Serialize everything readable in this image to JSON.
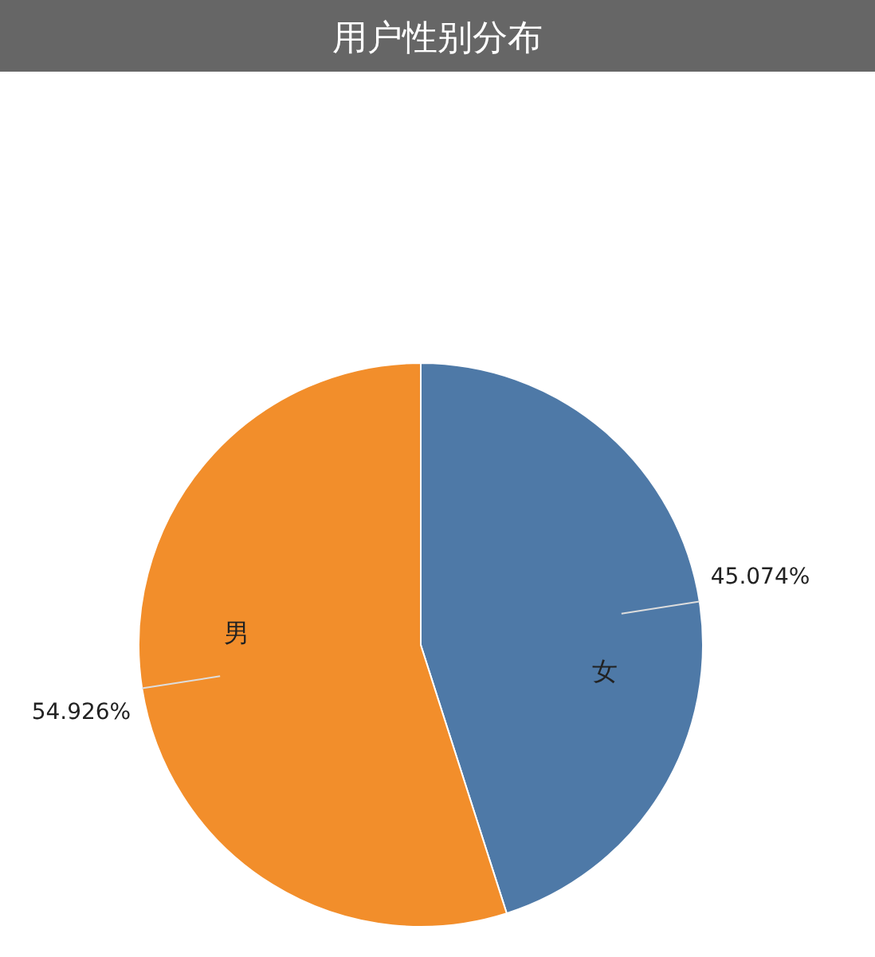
{
  "chart_data": {
    "type": "pie",
    "title": "用户性别分布",
    "categories": [
      "女",
      "男"
    ],
    "values": [
      45.074,
      54.926
    ],
    "colors": [
      "#4e79a7",
      "#f28e2b"
    ],
    "value_labels": [
      "45.074%",
      "54.926%"
    ]
  }
}
